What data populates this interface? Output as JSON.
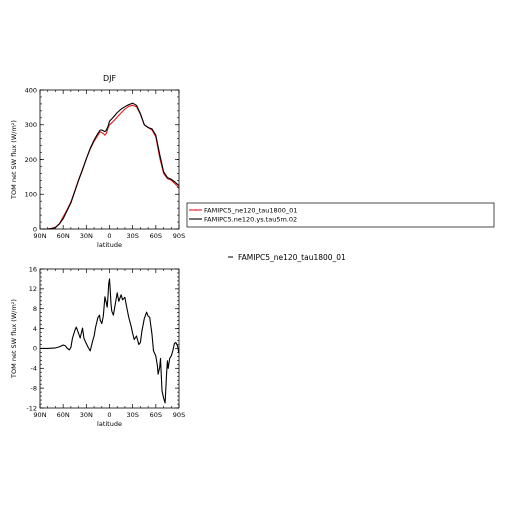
{
  "chart_data": [
    {
      "type": "line",
      "title": "DJF",
      "xlabel": "latitude",
      "ylabel": "TOM net SW flux (W/m²)",
      "xlim": [
        -90,
        90
      ],
      "ylim": [
        0,
        400
      ],
      "xticks": [
        -90,
        -60,
        -30,
        0,
        30,
        60,
        90
      ],
      "xtick_labels": [
        "90N",
        "60N",
        "30N",
        "0",
        "30S",
        "60S",
        "90S"
      ],
      "yticks": [
        0,
        100,
        200,
        300,
        400
      ],
      "ytick_labels": [
        "0",
        "100",
        "200",
        "300",
        "400"
      ],
      "legend": "right",
      "series": [
        {
          "name": "FAMIPC5_ne120_tau1800_01",
          "color": "#e8191e",
          "x": [
            -90,
            -80,
            -75,
            -70,
            -65,
            -60,
            -55,
            -50,
            -45,
            -40,
            -35,
            -30,
            -25,
            -20,
            -15,
            -12,
            -10,
            -8,
            -6,
            -4,
            -2,
            0,
            5,
            10,
            15,
            20,
            25,
            30,
            35,
            40,
            45,
            50,
            55,
            60,
            65,
            70,
            75,
            80,
            85,
            90
          ],
          "y": [
            0,
            0,
            2,
            5,
            15,
            35,
            55,
            78,
            110,
            142,
            172,
            202,
            230,
            252,
            270,
            280,
            277,
            275,
            270,
            275,
            290,
            300,
            310,
            322,
            334,
            345,
            353,
            356,
            352,
            330,
            300,
            292,
            285,
            265,
            205,
            160,
            145,
            140,
            130,
            118
          ]
        },
        {
          "name": "FAMIPC5.ne120.ys.tau5m.02",
          "color": "#000000",
          "x": [
            -90,
            -80,
            -75,
            -70,
            -65,
            -60,
            -55,
            -50,
            -45,
            -40,
            -35,
            -30,
            -25,
            -20,
            -15,
            -12,
            -10,
            -8,
            -6,
            -4,
            -2,
            0,
            5,
            10,
            15,
            20,
            25,
            30,
            35,
            40,
            45,
            50,
            55,
            60,
            65,
            70,
            75,
            80,
            85,
            90
          ],
          "y": [
            0,
            0,
            1,
            4,
            14,
            30,
            52,
            75,
            108,
            140,
            170,
            202,
            232,
            256,
            275,
            285,
            285,
            283,
            280,
            285,
            295,
            310,
            322,
            335,
            345,
            352,
            358,
            362,
            356,
            332,
            300,
            292,
            288,
            270,
            215,
            165,
            148,
            143,
            135,
            125
          ]
        }
      ]
    },
    {
      "type": "line",
      "title": "",
      "xlabel": "latitude",
      "ylabel": "TOM net SW flux (W/m²)",
      "xlim": [
        -90,
        90
      ],
      "ylim": [
        -12,
        16
      ],
      "xticks": [
        -90,
        -60,
        -30,
        0,
        30,
        60,
        90
      ],
      "xtick_labels": [
        "90N",
        "60N",
        "30N",
        "0",
        "30S",
        "60S",
        "90S"
      ],
      "yticks": [
        -12,
        -8,
        -4,
        0,
        4,
        8,
        12,
        16
      ],
      "ytick_labels": [
        "-12",
        "-8",
        "-4",
        "0",
        "4",
        "8",
        "12",
        "16"
      ],
      "legend": "right",
      "series": [
        {
          "name": "FAMIPC5_ne120_tau1800_01",
          "color": "#000000",
          "x": [
            -90,
            -80,
            -70,
            -65,
            -60,
            -57,
            -55,
            -52,
            -50,
            -48,
            -45,
            -43,
            -40,
            -38,
            -35,
            -33,
            -30,
            -28,
            -25,
            -22,
            -20,
            -18,
            -15,
            -13,
            -12,
            -10,
            -8,
            -6,
            -4,
            -3,
            -2,
            -1,
            0,
            1,
            2,
            3,
            5,
            7,
            10,
            12,
            15,
            17,
            20,
            22,
            25,
            28,
            30,
            32,
            35,
            38,
            40,
            42,
            45,
            48,
            50,
            52,
            55,
            57,
            60,
            62,
            63,
            65,
            66,
            67,
            68,
            70,
            72,
            74,
            75,
            76,
            78,
            80,
            82,
            84,
            86,
            88,
            90
          ],
          "y": [
            0,
            0,
            0.1,
            0.3,
            0.7,
            0.5,
            0.1,
            -0.3,
            0.2,
            2.0,
            3.6,
            4.3,
            3.0,
            2.1,
            4.1,
            2.0,
            1.0,
            0.3,
            -0.5,
            1.4,
            2.5,
            4.3,
            6.2,
            6.7,
            5.7,
            5.0,
            6.5,
            10.4,
            9.1,
            8.3,
            10.5,
            13.0,
            14.0,
            11.5,
            9.0,
            7.5,
            6.7,
            8.5,
            11.2,
            9.5,
            10.8,
            9.8,
            10.3,
            8.5,
            6.2,
            4.5,
            3.0,
            1.8,
            2.5,
            0.8,
            1.2,
            3.5,
            6.0,
            7.3,
            6.5,
            6.3,
            2.8,
            -0.5,
            -1.5,
            -3.5,
            -5.2,
            -3.8,
            -2.0,
            -5.0,
            -8.5,
            -10.0,
            -11.0,
            -5.0,
            -2.5,
            -4.0,
            -2.0,
            -1.5,
            -0.5,
            1.0,
            1.2,
            0.5,
            -1.0
          ]
        }
      ]
    }
  ],
  "legend": {
    "top": [
      "FAMIPC5_ne120_tau1800_01",
      "FAMIPC5.ne120.ys.tau5m.02"
    ],
    "bottom": "FAMIPC5_ne120_tau1800_01"
  }
}
